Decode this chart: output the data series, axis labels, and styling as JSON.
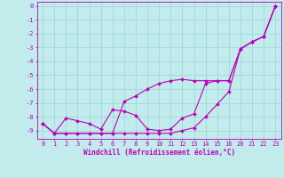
{
  "background_color": "#c2ebeb",
  "grid_color": "#a0d8d8",
  "line_color": "#bb00bb",
  "xlabel": "Windchill (Refroidissement éolien,°C)",
  "yticks": [
    0,
    -1,
    -2,
    -3,
    -4,
    -5,
    -6,
    -7,
    -8,
    -9
  ],
  "xtick_labels": [
    "0",
    "1",
    "2",
    "3",
    "4",
    "5",
    "6",
    "7",
    "8",
    "9",
    "10",
    "11",
    "12",
    "13",
    "14",
    "15",
    "16",
    "20",
    "21",
    "22",
    "23"
  ],
  "xtick_positions": [
    0,
    1,
    2,
    3,
    4,
    5,
    6,
    7,
    8,
    9,
    10,
    11,
    12,
    13,
    14,
    15,
    16,
    17,
    18,
    19,
    20
  ],
  "xlim": [
    -0.5,
    20.5
  ],
  "ylim": [
    -9.6,
    0.3
  ],
  "line1_x": [
    0,
    1,
    2,
    3,
    4,
    5,
    6,
    7,
    8,
    9,
    10,
    11,
    12,
    13,
    14,
    15,
    16,
    17,
    18,
    19,
    20
  ],
  "line1_y": [
    -8.5,
    -9.2,
    -8.1,
    -8.3,
    -8.5,
    -8.9,
    -7.5,
    -7.6,
    -7.9,
    -8.9,
    -9.0,
    -8.9,
    -8.1,
    -7.8,
    -5.6,
    -5.4,
    -5.4,
    -3.1,
    -2.6,
    -2.2,
    0.0
  ],
  "line2_x": [
    0,
    1,
    2,
    3,
    4,
    5,
    6,
    7,
    8,
    9,
    10,
    11,
    12,
    13,
    14,
    15,
    16,
    17,
    18,
    19,
    20
  ],
  "line2_y": [
    -8.5,
    -9.2,
    -9.2,
    -9.2,
    -9.2,
    -9.2,
    -9.2,
    -9.2,
    -9.2,
    -9.2,
    -9.2,
    -9.2,
    -9.0,
    -8.8,
    -8.0,
    -7.1,
    -6.2,
    -3.1,
    -2.6,
    -2.2,
    0.0
  ],
  "line3_x": [
    0,
    1,
    2,
    3,
    4,
    5,
    6,
    7,
    8,
    9,
    10,
    11,
    12,
    13,
    14,
    15,
    16,
    17,
    18,
    19,
    20
  ],
  "line3_y": [
    -8.5,
    -9.2,
    -9.2,
    -9.2,
    -9.2,
    -9.2,
    -9.2,
    -6.9,
    -6.5,
    -6.0,
    -5.6,
    -5.4,
    -5.3,
    -5.4,
    -5.4,
    -5.4,
    -5.4,
    -3.1,
    -2.6,
    -2.2,
    0.0
  ],
  "xlabel_fontsize": 5.5,
  "tick_fontsize": 5,
  "lw": 0.8,
  "ms": 2.0
}
